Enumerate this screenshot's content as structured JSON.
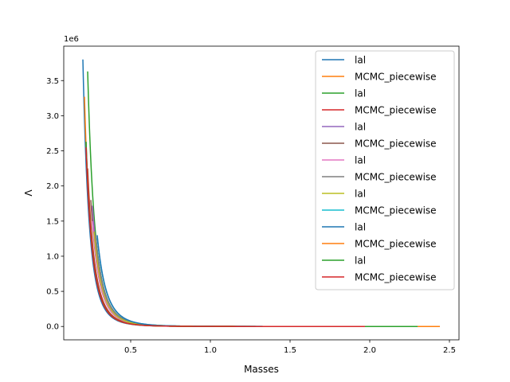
{
  "chart_data": {
    "type": "line",
    "title": "",
    "xlabel": "Masses",
    "ylabel": "Λ",
    "y_offset_label": "1e6",
    "xlim": [
      0.08,
      2.56
    ],
    "ylim": [
      -0.19,
      3.99
    ],
    "xticks": [
      0.5,
      1.0,
      1.5,
      2.0,
      2.5
    ],
    "xtick_labels": [
      "0.5",
      "1.0",
      "1.5",
      "2.0",
      "2.5"
    ],
    "yticks": [
      0.0,
      0.5,
      1.0,
      1.5,
      2.0,
      2.5,
      3.0,
      3.5
    ],
    "ytick_labels": [
      "0.0",
      "0.5",
      "1.0",
      "1.5",
      "2.0",
      "2.5",
      "3.0",
      "3.5"
    ],
    "legend_position": "top-right",
    "grid": false,
    "series": [
      {
        "name": "lal",
        "color": "#1f77b4",
        "x_min": 0.2,
        "x_max": 2.0,
        "y_at_min": 3.8
      },
      {
        "name": "MCMC_piecewise",
        "color": "#ff7f0e",
        "x_min": 0.21,
        "x_max": 2.1,
        "y_at_min": 3.27
      },
      {
        "name": "lal",
        "color": "#2ca02c",
        "x_min": 0.23,
        "x_max": 2.1,
        "y_at_min": 3.63
      },
      {
        "name": "MCMC_piecewise",
        "color": "#d62728",
        "x_min": 0.23,
        "x_max": 1.97,
        "y_at_min": 2.25
      },
      {
        "name": "lal",
        "color": "#9467bd",
        "x_min": 0.26,
        "x_max": 1.97,
        "y_at_min": 1.72
      },
      {
        "name": "MCMC_piecewise",
        "color": "#8c564b",
        "x_min": 0.25,
        "x_max": 1.97,
        "y_at_min": 1.8
      },
      {
        "name": "lal",
        "color": "#e377c2",
        "x_min": 0.26,
        "x_max": 1.97,
        "y_at_min": 1.5
      },
      {
        "name": "MCMC_piecewise",
        "color": "#7f7f7f",
        "x_min": 0.28,
        "x_max": 1.97,
        "y_at_min": 1.3
      },
      {
        "name": "lal",
        "color": "#bcbd22",
        "x_min": 0.27,
        "x_max": 1.97,
        "y_at_min": 1.35
      },
      {
        "name": "MCMC_piecewise",
        "color": "#17becf",
        "x_min": 0.29,
        "x_max": 1.97,
        "y_at_min": 1.28
      },
      {
        "name": "lal",
        "color": "#1f77b4",
        "x_min": 0.29,
        "x_max": 1.97,
        "y_at_min": 1.3
      },
      {
        "name": "MCMC_piecewise",
        "color": "#ff7f0e",
        "x_min": 0.22,
        "x_max": 2.44,
        "y_at_min": 2.62
      },
      {
        "name": "lal",
        "color": "#2ca02c",
        "x_min": 0.22,
        "x_max": 2.3,
        "y_at_min": 2.63
      },
      {
        "name": "MCMC_piecewise",
        "color": "#d62728",
        "x_min": 0.22,
        "x_max": 1.97,
        "y_at_min": 2.55
      }
    ]
  }
}
